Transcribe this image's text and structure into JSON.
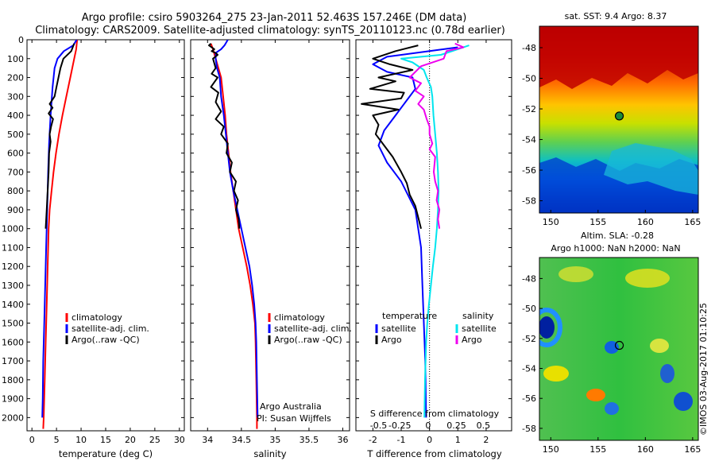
{
  "title_line1": "Argo profile: csiro 5903264_275 23-Jan-2011 52.463S 157.246E (DM data)",
  "title_line2": "Climatology: CARS2009. Satellite-adjusted climatology: synTS_20110123.nc (0.78d earlier)",
  "credit": "©IMOS 03-Aug-2017 01:10:25",
  "colors": {
    "climatology": "#ff0000",
    "satellite": "#0000ff",
    "argo": "#000000",
    "salinity_satellite": "#00e5ee",
    "salinity_argo": "#ee00ee"
  },
  "chart_data": [
    {
      "type": "line",
      "id": "temperature",
      "xlabel": "temperature (deg C)",
      "xlim": [
        -1,
        31
      ],
      "xticks": [
        0,
        5,
        10,
        15,
        20,
        25,
        30
      ],
      "ylim": [
        2070,
        0
      ],
      "yticks": [
        0,
        100,
        200,
        300,
        400,
        500,
        600,
        700,
        800,
        900,
        1000,
        1100,
        1200,
        1300,
        1400,
        1500,
        1600,
        1700,
        1800,
        1900,
        2000
      ],
      "legend": [
        "climatology",
        "satellite-adj. clim.",
        "Argo(..raw -QC)"
      ],
      "series": [
        {
          "name": "climatology",
          "color": "#ff0000",
          "points": [
            [
              9.2,
              0
            ],
            [
              9.0,
              50
            ],
            [
              8.6,
              100
            ],
            [
              7.8,
              200
            ],
            [
              7.0,
              300
            ],
            [
              6.2,
              400
            ],
            [
              5.5,
              500
            ],
            [
              4.9,
              600
            ],
            [
              4.4,
              700
            ],
            [
              4.0,
              800
            ],
            [
              3.6,
              900
            ],
            [
              3.4,
              1000
            ],
            [
              3.2,
              1200
            ],
            [
              3.0,
              1400
            ],
            [
              2.8,
              1600
            ],
            [
              2.6,
              1800
            ],
            [
              2.4,
              2000
            ],
            [
              2.3,
              2060
            ]
          ]
        },
        {
          "name": "satellite-adj. clim.",
          "color": "#0000ff",
          "points": [
            [
              9.1,
              0
            ],
            [
              8.4,
              30
            ],
            [
              6.5,
              60
            ],
            [
              5.2,
              100
            ],
            [
              4.6,
              150
            ],
            [
              4.2,
              250
            ],
            [
              3.8,
              400
            ],
            [
              3.5,
              550
            ],
            [
              3.3,
              700
            ],
            [
              3.1,
              900
            ],
            [
              2.9,
              1100
            ],
            [
              2.7,
              1300
            ],
            [
              2.5,
              1500
            ],
            [
              2.3,
              1700
            ],
            [
              2.2,
              1900
            ],
            [
              2.1,
              2000
            ]
          ]
        },
        {
          "name": "Argo(..raw -QC)",
          "color": "#000000",
          "points": [
            [
              8.6,
              20
            ],
            [
              8.0,
              60
            ],
            [
              6.4,
              100
            ],
            [
              5.8,
              150
            ],
            [
              5.4,
              200
            ],
            [
              5.0,
              250
            ],
            [
              4.6,
              300
            ],
            [
              3.6,
              340
            ],
            [
              4.2,
              360
            ],
            [
              3.4,
              390
            ],
            [
              4.3,
              420
            ],
            [
              3.9,
              460
            ],
            [
              3.6,
              500
            ],
            [
              3.8,
              540
            ],
            [
              3.5,
              600
            ],
            [
              3.4,
              700
            ],
            [
              3.2,
              800
            ],
            [
              3.0,
              900
            ],
            [
              2.8,
              1000
            ]
          ]
        }
      ]
    },
    {
      "type": "line",
      "id": "salinity",
      "xlabel": "salinity",
      "xlim": [
        33.75,
        36.1
      ],
      "xticks": [
        34,
        34.5,
        35,
        35.5,
        36
      ],
      "ylim": [
        2070,
        0
      ],
      "legend": [
        "climatology",
        "satellite-adj. clim.",
        "Argo(..raw -QC)"
      ],
      "annotation": [
        "Argo Australia",
        "PI: Susan Wijffels"
      ],
      "series": [
        {
          "name": "climatology",
          "color": "#ff0000",
          "points": [
            [
              34.05,
              20
            ],
            [
              34.08,
              50
            ],
            [
              34.12,
              100
            ],
            [
              34.16,
              150
            ],
            [
              34.2,
              200
            ],
            [
              34.23,
              300
            ],
            [
              34.26,
              400
            ],
            [
              34.28,
              500
            ],
            [
              34.31,
              600
            ],
            [
              34.34,
              700
            ],
            [
              34.38,
              800
            ],
            [
              34.42,
              900
            ],
            [
              34.46,
              1000
            ],
            [
              34.52,
              1100
            ],
            [
              34.58,
              1200
            ],
            [
              34.63,
              1300
            ],
            [
              34.67,
              1400
            ],
            [
              34.7,
              1500
            ],
            [
              34.71,
              1600
            ],
            [
              34.72,
              1800
            ],
            [
              34.73,
              2000
            ],
            [
              34.73,
              2060
            ]
          ]
        },
        {
          "name": "satellite-adj. clim.",
          "color": "#0000ff",
          "points": [
            [
              34.3,
              0
            ],
            [
              34.25,
              30
            ],
            [
              34.2,
              50
            ],
            [
              34.12,
              70
            ],
            [
              34.12,
              100
            ],
            [
              34.14,
              150
            ],
            [
              34.18,
              200
            ],
            [
              34.2,
              300
            ],
            [
              34.24,
              400
            ],
            [
              34.27,
              500
            ],
            [
              34.3,
              600
            ],
            [
              34.33,
              700
            ],
            [
              34.38,
              800
            ],
            [
              34.44,
              900
            ],
            [
              34.5,
              1000
            ],
            [
              34.56,
              1100
            ],
            [
              34.62,
              1200
            ],
            [
              34.66,
              1300
            ],
            [
              34.69,
              1400
            ],
            [
              34.71,
              1500
            ],
            [
              34.72,
              1600
            ],
            [
              34.73,
              1800
            ],
            [
              34.74,
              2000
            ]
          ]
        },
        {
          "name": "Argo(..raw -QC)",
          "color": "#000000",
          "points": [
            [
              34.05,
              20
            ],
            [
              34.02,
              30
            ],
            [
              34.1,
              50
            ],
            [
              34.06,
              60
            ],
            [
              34.12,
              70
            ],
            [
              34.15,
              80
            ],
            [
              34.08,
              100
            ],
            [
              34.12,
              150
            ],
            [
              34.06,
              180
            ],
            [
              34.15,
              200
            ],
            [
              34.05,
              250
            ],
            [
              34.16,
              280
            ],
            [
              34.12,
              330
            ],
            [
              34.2,
              380
            ],
            [
              34.12,
              420
            ],
            [
              34.24,
              460
            ],
            [
              34.2,
              500
            ],
            [
              34.3,
              550
            ],
            [
              34.28,
              600
            ],
            [
              34.36,
              650
            ],
            [
              34.33,
              700
            ],
            [
              34.42,
              750
            ],
            [
              34.39,
              800
            ],
            [
              34.45,
              850
            ],
            [
              34.42,
              900
            ],
            [
              34.46,
              950
            ],
            [
              34.47,
              1000
            ]
          ]
        }
      ]
    },
    {
      "type": "line",
      "id": "differences",
      "xlabel": "T difference from climatology",
      "xlim": [
        -2.6,
        2.9
      ],
      "xticks": [
        -2,
        -1,
        0,
        1,
        2
      ],
      "secondary_xlabel": "S difference from climatology",
      "secondary_xticks": [
        "-0.5",
        "-0.25",
        "0",
        "0.25",
        "0.5"
      ],
      "ylim": [
        2070,
        0
      ],
      "legend_left_title": "temperature",
      "legend_right_title": "salinity",
      "legend_left": [
        "satellite",
        "Argo"
      ],
      "legend_right": [
        "satellite",
        "Argo"
      ],
      "series": [
        {
          "name": "temperature satellite",
          "color": "#0000ff",
          "points": [
            [
              1.0,
              40
            ],
            [
              0.0,
              60
            ],
            [
              -1.5,
              90
            ],
            [
              -2.0,
              130
            ],
            [
              -1.5,
              170
            ],
            [
              -0.6,
              200
            ],
            [
              -0.5,
              260
            ],
            [
              -0.8,
              320
            ],
            [
              -1.2,
              400
            ],
            [
              -1.6,
              480
            ],
            [
              -1.8,
              560
            ],
            [
              -1.5,
              650
            ],
            [
              -1.0,
              750
            ],
            [
              -0.5,
              900
            ],
            [
              -0.3,
              1100
            ],
            [
              -0.25,
              1300
            ],
            [
              -0.2,
              1500
            ],
            [
              -0.15,
              1700
            ],
            [
              -0.13,
              1900
            ],
            [
              -0.12,
              2000
            ]
          ]
        },
        {
          "name": "temperature Argo",
          "color": "#000000",
          "points": [
            [
              -0.4,
              30
            ],
            [
              -1.2,
              60
            ],
            [
              -2.0,
              100
            ],
            [
              -1.4,
              130
            ],
            [
              -0.6,
              160
            ],
            [
              -1.8,
              200
            ],
            [
              -1.2,
              220
            ],
            [
              -2.1,
              260
            ],
            [
              -0.9,
              280
            ],
            [
              -1.0,
              310
            ],
            [
              -2.4,
              340
            ],
            [
              -1.1,
              370
            ],
            [
              -2.0,
              400
            ],
            [
              -1.8,
              450
            ],
            [
              -1.9,
              500
            ],
            [
              -1.6,
              560
            ],
            [
              -1.3,
              620
            ],
            [
              -1.0,
              700
            ],
            [
              -0.8,
              760
            ],
            [
              -0.7,
              820
            ],
            [
              -0.5,
              880
            ],
            [
              -0.4,
              940
            ],
            [
              -0.3,
              1000
            ]
          ]
        },
        {
          "name": "salinity satellite",
          "color": "#00e5ee",
          "points": [
            [
              1.4,
              30
            ],
            [
              0.8,
              60
            ],
            [
              0.4,
              80
            ],
            [
              -1.0,
              100
            ],
            [
              -0.6,
              120
            ],
            [
              -0.2,
              160
            ],
            [
              -0.1,
              200
            ],
            [
              0.05,
              250
            ],
            [
              0.1,
              300
            ],
            [
              0.14,
              400
            ],
            [
              0.2,
              500
            ],
            [
              0.26,
              600
            ],
            [
              0.3,
              700
            ],
            [
              0.32,
              800
            ],
            [
              0.3,
              900
            ],
            [
              0.26,
              1000
            ],
            [
              0.2,
              1100
            ],
            [
              0.12,
              1200
            ],
            [
              0.05,
              1300
            ],
            [
              -0.02,
              1400
            ],
            [
              -0.08,
              1500
            ],
            [
              -0.12,
              1600
            ],
            [
              -0.16,
              1800
            ],
            [
              -0.18,
              2000
            ]
          ]
        },
        {
          "name": "salinity Argo",
          "color": "#ee00ee",
          "points": [
            [
              0.9,
              20
            ],
            [
              1.2,
              40
            ],
            [
              0.6,
              60
            ],
            [
              0.5,
              100
            ],
            [
              -0.3,
              140
            ],
            [
              -0.7,
              200
            ],
            [
              -0.3,
              230
            ],
            [
              -0.5,
              270
            ],
            [
              -0.2,
              300
            ],
            [
              -0.4,
              340
            ],
            [
              -0.2,
              370
            ],
            [
              -0.1,
              420
            ],
            [
              0.0,
              460
            ],
            [
              0.0,
              500
            ],
            [
              0.1,
              550
            ],
            [
              0.0,
              580
            ],
            [
              0.2,
              620
            ],
            [
              0.15,
              700
            ],
            [
              0.2,
              750
            ],
            [
              0.3,
              800
            ],
            [
              0.25,
              850
            ],
            [
              0.35,
              900
            ],
            [
              0.3,
              950
            ],
            [
              0.35,
              1000
            ]
          ]
        }
      ]
    },
    {
      "type": "heatmap",
      "id": "sst_map",
      "title": "sat. SST: 9.4 Argo: 8.37",
      "xlim": [
        148.8,
        165.6
      ],
      "ylim": [
        -58.8,
        -46.6
      ],
      "xticks": [
        150,
        155,
        160,
        165
      ],
      "yticks": [
        -48,
        -50,
        -52,
        -54,
        -56,
        -58
      ],
      "profile_marker": {
        "lon": 157.246,
        "lat": -52.463
      }
    },
    {
      "type": "heatmap",
      "id": "sla_map",
      "title_line1": "Altim. SLA: -0.28",
      "title_line2": "Argo h1000: NaN h2000: NaN",
      "xlim": [
        148.8,
        165.6
      ],
      "ylim": [
        -58.8,
        -46.6
      ],
      "xticks": [
        150,
        155,
        160,
        165
      ],
      "yticks": [
        -48,
        -50,
        -52,
        -54,
        -56,
        -58
      ],
      "profile_marker": {
        "lon": 157.246,
        "lat": -52.463
      }
    }
  ]
}
